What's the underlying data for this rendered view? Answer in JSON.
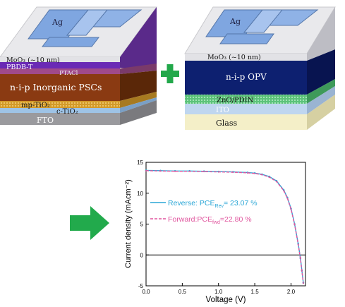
{
  "left_stack": {
    "electrode": "Ag",
    "layers": [
      "MoO₃ (~10 nm)",
      "PBDB-T",
      "PTACl",
      "n-i-p Inorganic PSCs",
      "mp-TiO₂",
      "c-TiO₂",
      "FTO"
    ]
  },
  "right_stack": {
    "electrode": "Ag",
    "layers": [
      "MoO₃ (~10 nm)",
      "n-i-p OPV",
      "ZnO/PDIN",
      "ITO",
      "Glass"
    ]
  },
  "colors": {
    "plus": "#22a84a",
    "arrow": "#22aa4c",
    "reverse": "#2aa6d6",
    "forward": "#e0559e",
    "psc": "#8a3a12",
    "opv": "#0d2070",
    "purple": "#6a2ab5",
    "mp_tio2": "#d1a031",
    "electrode": "#7fa6e0"
  },
  "chart_data": {
    "type": "line",
    "xlabel": "Voltage (V)",
    "ylabel": "Current density (mAcm⁻²)",
    "xlim": [
      0.0,
      2.2
    ],
    "ylim": [
      -5,
      15
    ],
    "xticks": [
      "0.0",
      "0.5",
      "1.0",
      "1.5",
      "2.0"
    ],
    "yticks": [
      "-5",
      "0",
      "5",
      "10",
      "15"
    ],
    "legend_position": "center-right",
    "series": [
      {
        "name": "Reverse: PCE_Rev= 23.07 %",
        "legend_main": "Reverse: PCE",
        "legend_sub": "Rev",
        "legend_tail": "= 23.07 %",
        "x": [
          0.0,
          0.2,
          0.4,
          0.6,
          0.8,
          1.0,
          1.2,
          1.4,
          1.5,
          1.6,
          1.7,
          1.8,
          1.9,
          1.95,
          2.0,
          2.05,
          2.1,
          2.13,
          2.15,
          2.17
        ],
        "y": [
          13.7,
          13.65,
          13.6,
          13.6,
          13.55,
          13.5,
          13.45,
          13.35,
          13.25,
          13.05,
          12.7,
          12.0,
          10.5,
          9.3,
          7.5,
          5.0,
          1.8,
          -0.5,
          -2.5,
          -4.5
        ]
      },
      {
        "name": "Forward:PCE_fwd=22.80 %",
        "legend_main": "Forward:PCE",
        "legend_sub": "fwd",
        "legend_tail": "=22.80 %",
        "x": [
          0.0,
          0.2,
          0.4,
          0.6,
          0.8,
          1.0,
          1.2,
          1.4,
          1.5,
          1.6,
          1.7,
          1.8,
          1.9,
          1.95,
          2.0,
          2.05,
          2.1,
          2.13,
          2.15,
          2.17
        ],
        "y": [
          13.65,
          13.6,
          13.55,
          13.55,
          13.5,
          13.45,
          13.4,
          13.3,
          13.2,
          13.0,
          12.6,
          11.9,
          10.4,
          9.2,
          7.4,
          4.9,
          1.7,
          -0.6,
          -2.6,
          -4.6
        ]
      }
    ]
  }
}
